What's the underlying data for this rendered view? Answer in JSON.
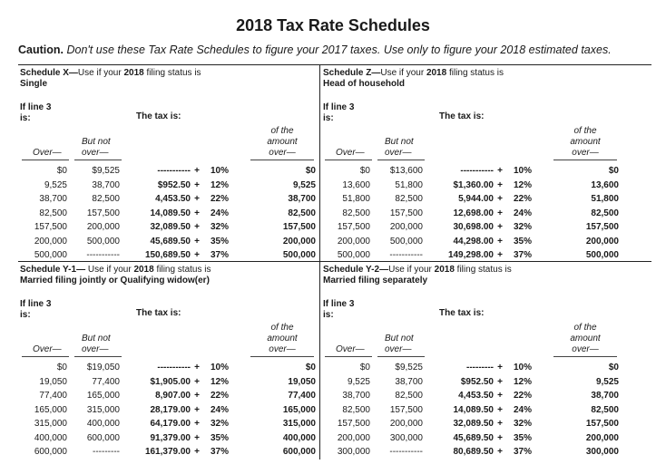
{
  "document": {
    "title": "2018 Tax Rate Schedules",
    "caution_label": "Caution.",
    "caution_text": " Don't use these Tax Rate Schedules to figure your 2017 taxes. Use only to figure your 2018 estimated taxes."
  },
  "labels": {
    "if_line": "If line 3",
    "is": "is:",
    "tax_is": "The tax is:",
    "of_the": "of the",
    "amount": "amount",
    "over_col": "over—",
    "over": "Over—",
    "but_not": "But not",
    "over_lower": "over—"
  },
  "schedules": [
    {
      "header_prefix": "Schedule X—",
      "header_middle": "Use if your ",
      "header_year": "2018",
      "header_suffix": " filing status is",
      "status": "Single",
      "rows": [
        {
          "over": "$0",
          "not_over": "$9,525",
          "base": "-----------",
          "rate": "10%",
          "amount": "$0"
        },
        {
          "over": "9,525",
          "not_over": "38,700",
          "base": "$952.50",
          "rate": "12%",
          "amount": "9,525"
        },
        {
          "over": "38,700",
          "not_over": "82,500",
          "base": "4,453.50",
          "rate": "22%",
          "amount": "38,700"
        },
        {
          "over": "82,500",
          "not_over": "157,500",
          "base": "14,089.50",
          "rate": "24%",
          "amount": "82,500"
        },
        {
          "over": "157,500",
          "not_over": "200,000",
          "base": "32,089.50",
          "rate": "32%",
          "amount": "157,500"
        },
        {
          "over": "200,000",
          "not_over": "500,000",
          "base": "45,689.50",
          "rate": "35%",
          "amount": "200,000"
        },
        {
          "over": "500,000",
          "not_over": "-----------",
          "base": "150,689.50",
          "rate": "37%",
          "amount": "500,000"
        }
      ]
    },
    {
      "header_prefix": "Schedule Z—",
      "header_middle": "Use if your ",
      "header_year": "2018",
      "header_suffix": " filing status is",
      "status": "Head of household",
      "rows": [
        {
          "over": "$0",
          "not_over": "$13,600",
          "base": "-----------",
          "rate": "10%",
          "amount": "$0"
        },
        {
          "over": "13,600",
          "not_over": "51,800",
          "base": "$1,360.00",
          "rate": "12%",
          "amount": "13,600"
        },
        {
          "over": "51,800",
          "not_over": "82,500",
          "base": "5,944.00",
          "rate": "22%",
          "amount": "51,800"
        },
        {
          "over": "82,500",
          "not_over": "157,500",
          "base": "12,698.00",
          "rate": "24%",
          "amount": "82,500"
        },
        {
          "over": "157,500",
          "not_over": "200,000",
          "base": "30,698.00",
          "rate": "32%",
          "amount": "157,500"
        },
        {
          "over": "200,000",
          "not_over": "500,000",
          "base": "44,298.00",
          "rate": "35%",
          "amount": "200,000"
        },
        {
          "over": "500,000",
          "not_over": "-----------",
          "base": "149,298.00",
          "rate": "37%",
          "amount": "500,000"
        }
      ]
    },
    {
      "header_prefix": "Schedule Y-1—",
      "header_middle": " Use if your ",
      "header_year": "2018",
      "header_suffix": " filing status is",
      "status": "Married filing jointly or Qualifying widow(er)",
      "rows": [
        {
          "over": "$0",
          "not_over": "$19,050",
          "base": "-----------",
          "rate": "10%",
          "amount": "$0"
        },
        {
          "over": "19,050",
          "not_over": "77,400",
          "base": "$1,905.00",
          "rate": "12%",
          "amount": "19,050"
        },
        {
          "over": "77,400",
          "not_over": "165,000",
          "base": "8,907.00",
          "rate": "22%",
          "amount": "77,400"
        },
        {
          "over": "165,000",
          "not_over": "315,000",
          "base": "28,179.00",
          "rate": "24%",
          "amount": "165,000"
        },
        {
          "over": "315,000",
          "not_over": "400,000",
          "base": "64,179.00",
          "rate": "32%",
          "amount": "315,000"
        },
        {
          "over": "400,000",
          "not_over": "600,000",
          "base": "91,379.00",
          "rate": "35%",
          "amount": "400,000"
        },
        {
          "over": "600,000",
          "not_over": "---------",
          "base": "161,379.00",
          "rate": "37%",
          "amount": "600,000"
        }
      ]
    },
    {
      "header_prefix": "Schedule Y-2—",
      "header_middle": "Use if your ",
      "header_year": "2018",
      "header_suffix": " filing status is",
      "status": "Married filing separately",
      "rows": [
        {
          "over": "$0",
          "not_over": "$9,525",
          "base": "---------",
          "rate": "10%",
          "amount": "$0"
        },
        {
          "over": "9,525",
          "not_over": "38,700",
          "base": "$952.50",
          "rate": "12%",
          "amount": "9,525"
        },
        {
          "over": "38,700",
          "not_over": "82,500",
          "base": "4,453.50",
          "rate": "22%",
          "amount": "38,700"
        },
        {
          "over": "82,500",
          "not_over": "157,500",
          "base": "14,089.50",
          "rate": "24%",
          "amount": "82,500"
        },
        {
          "over": "157,500",
          "not_over": "200,000",
          "base": "32,089.50",
          "rate": "32%",
          "amount": "157,500"
        },
        {
          "over": "200,000",
          "not_over": "300,000",
          "base": "45,689.50",
          "rate": "35%",
          "amount": "200,000"
        },
        {
          "over": "300,000",
          "not_over": "-----------",
          "base": "80,689.50",
          "rate": "37%",
          "amount": "300,000"
        }
      ]
    }
  ]
}
